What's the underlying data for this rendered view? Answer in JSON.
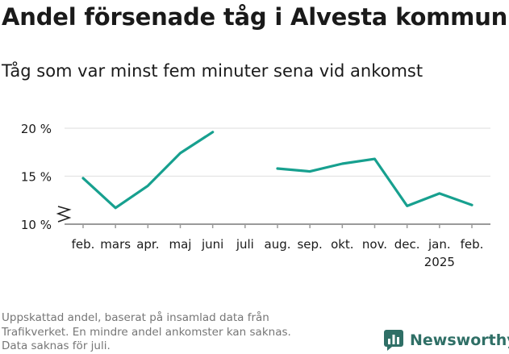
{
  "title": "Andel försenade tåg i Alvesta kommun",
  "subtitle": "Tåg som var minst fem minuter sena vid ankomst",
  "footnote": [
    "Uppskattad andel, baserat på insamlad data från",
    "Trafikverket. En mindre andel ankomster kan saknas.",
    "Data saknas för juli."
  ],
  "brand": {
    "name": "Newsworthy",
    "icon": "bar-chart-logo-icon"
  },
  "colors": {
    "line": "#17a08f",
    "grid": "#e3e3e3",
    "axis": "#9a9a9a",
    "text": "#1a1a1a",
    "brand": "#2f6f66"
  },
  "chart_data": {
    "type": "line",
    "categories": [
      "feb.",
      "mars",
      "apr.",
      "maj",
      "juni",
      "juli",
      "aug.",
      "sep.",
      "okt.",
      "nov.",
      "dec.",
      "jan.",
      "feb."
    ],
    "year_label": {
      "index": 11,
      "text": "2025"
    },
    "series": [
      {
        "values": [
          14.8,
          11.7,
          14.0,
          17.4,
          19.6,
          null,
          15.8,
          15.5,
          16.3,
          16.8,
          11.9,
          13.2,
          12.0
        ]
      }
    ],
    "yticks": [
      10,
      15,
      20
    ],
    "yticklabels": [
      "10 %",
      "15 %",
      "20 %"
    ],
    "ylim": [
      10,
      20
    ],
    "axis_break": true,
    "grid": true
  }
}
